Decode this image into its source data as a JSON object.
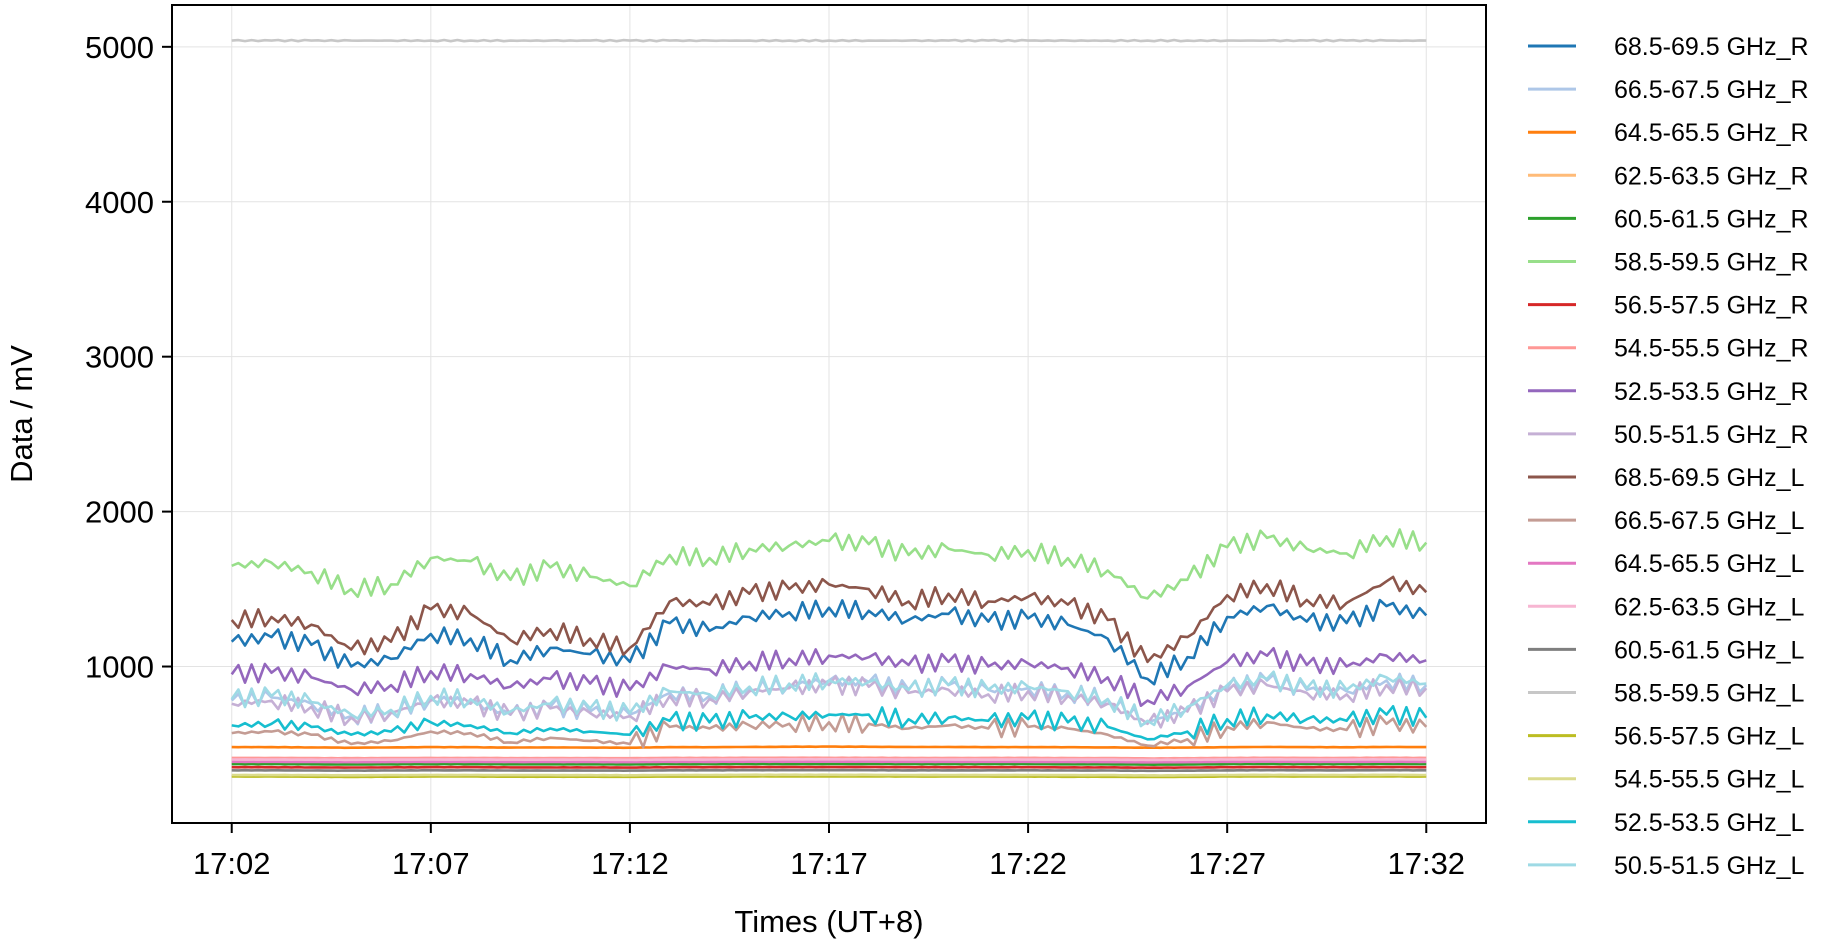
{
  "chart_data": {
    "type": "line",
    "xlabel": "Times (UT+8)",
    "ylabel": "Data / mV",
    "xlim": [
      "17:00:30",
      "17:33:30"
    ],
    "ylim": [
      -10,
      5270
    ],
    "x_ticks": [
      "17:02",
      "17:07",
      "17:12",
      "17:17",
      "17:22",
      "17:27",
      "17:32"
    ],
    "y_ticks": [
      1000,
      2000,
      3000,
      4000,
      5000
    ],
    "grid": true,
    "legend_placement": "outside-right",
    "x": [
      "17:02",
      "17:03",
      "17:04",
      "17:05",
      "17:06",
      "17:07",
      "17:08",
      "17:09",
      "17:10",
      "17:11",
      "17:12",
      "17:13",
      "17:14",
      "17:15",
      "17:16",
      "17:17",
      "17:18",
      "17:19",
      "17:20",
      "17:21",
      "17:22",
      "17:23",
      "17:24",
      "17:25",
      "17:26",
      "17:27",
      "17:28",
      "17:29",
      "17:30",
      "17:31",
      "17:32"
    ],
    "series": [
      {
        "name": "68.5-69.5 GHz_R",
        "color": "#1f77b4",
        "values": [
          1160,
          1190,
          1140,
          1000,
          1050,
          1210,
          1180,
          1040,
          1120,
          1080,
          1030,
          1280,
          1230,
          1320,
          1350,
          1380,
          1360,
          1300,
          1340,
          1290,
          1310,
          1270,
          1180,
          920,
          1060,
          1320,
          1390,
          1290,
          1280,
          1390,
          1330
        ]
      },
      {
        "name": "66.5-67.5 GHz_R",
        "color": "#aec7e8",
        "values": [
          780,
          800,
          760,
          680,
          710,
          790,
          770,
          690,
          740,
          710,
          690,
          830,
          810,
          860,
          880,
          910,
          900,
          850,
          880,
          850,
          860,
          830,
          790,
          640,
          720,
          860,
          910,
          850,
          840,
          910,
          880
        ]
      },
      {
        "name": "64.5-65.5 GHz_R",
        "color": "#ff7f0e",
        "values": [
          480,
          480,
          478,
          476,
          478,
          480,
          479,
          477,
          478,
          477,
          476,
          480,
          479,
          481,
          482,
          483,
          482,
          481,
          481,
          480,
          480,
          479,
          478,
          476,
          477,
          479,
          481,
          480,
          479,
          481,
          480
        ]
      },
      {
        "name": "62.5-63.5 GHz_R",
        "color": "#ffbb78",
        "values": [
          395,
          395,
          394,
          393,
          394,
          395,
          395,
          394,
          394,
          394,
          393,
          395,
          395,
          396,
          396,
          396,
          396,
          395,
          395,
          395,
          395,
          394,
          394,
          392,
          393,
          395,
          396,
          395,
          395,
          396,
          395
        ]
      },
      {
        "name": "60.5-61.5 GHz_R",
        "color": "#2ca02c",
        "values": [
          370,
          370,
          369,
          368,
          369,
          370,
          370,
          369,
          369,
          369,
          368,
          370,
          370,
          371,
          371,
          371,
          371,
          370,
          370,
          370,
          370,
          369,
          369,
          367,
          368,
          370,
          371,
          370,
          370,
          371,
          370
        ]
      },
      {
        "name": "58.5-59.5 GHz_R",
        "color": "#98df8a",
        "values": [
          1650,
          1670,
          1610,
          1500,
          1530,
          1700,
          1680,
          1560,
          1640,
          1580,
          1520,
          1720,
          1700,
          1760,
          1780,
          1810,
          1790,
          1720,
          1760,
          1720,
          1750,
          1700,
          1620,
          1440,
          1560,
          1770,
          1830,
          1760,
          1730,
          1840,
          1800
        ]
      },
      {
        "name": "56.5-57.5 GHz_R",
        "color": "#d62728",
        "values": [
          350,
          350,
          349,
          348,
          349,
          350,
          350,
          349,
          349,
          349,
          348,
          350,
          350,
          351,
          351,
          351,
          351,
          350,
          350,
          350,
          350,
          349,
          349,
          347,
          348,
          350,
          351,
          350,
          350,
          351,
          350
        ]
      },
      {
        "name": "54.5-55.5 GHz_R",
        "color": "#ff9896",
        "values": [
          410,
          410,
          409,
          408,
          409,
          410,
          410,
          409,
          409,
          409,
          408,
          410,
          410,
          411,
          411,
          411,
          411,
          410,
          410,
          410,
          410,
          409,
          409,
          407,
          408,
          410,
          411,
          410,
          410,
          411,
          410
        ]
      },
      {
        "name": "52.5-53.5 GHz_R",
        "color": "#9467bd",
        "values": [
          950,
          960,
          930,
          850,
          880,
          970,
          950,
          870,
          920,
          890,
          850,
          1000,
          980,
          1030,
          1050,
          1070,
          1060,
          1010,
          1030,
          1000,
          1020,
          990,
          930,
          780,
          870,
          1030,
          1070,
          1010,
          1000,
          1070,
          1040
        ]
      },
      {
        "name": "50.5-51.5 GHz_R",
        "color": "#c5b0d5",
        "values": [
          760,
          780,
          740,
          670,
          700,
          780,
          760,
          690,
          730,
          700,
          680,
          810,
          790,
          840,
          860,
          880,
          870,
          830,
          850,
          820,
          840,
          810,
          760,
          630,
          710,
          840,
          880,
          830,
          820,
          880,
          860
        ]
      },
      {
        "name": "68.5-69.5 GHz_L",
        "color": "#8c564b",
        "values": [
          1300,
          1320,
          1270,
          1110,
          1160,
          1370,
          1340,
          1170,
          1240,
          1180,
          1120,
          1420,
          1400,
          1470,
          1500,
          1530,
          1500,
          1420,
          1470,
          1420,
          1450,
          1400,
          1300,
          1030,
          1190,
          1460,
          1530,
          1430,
          1410,
          1550,
          1480
        ]
      },
      {
        "name": "66.5-67.5 GHz_L",
        "color": "#c49c94",
        "values": [
          570,
          580,
          560,
          500,
          520,
          580,
          570,
          510,
          540,
          520,
          500,
          610,
          600,
          620,
          630,
          640,
          630,
          600,
          620,
          600,
          610,
          600,
          560,
          490,
          530,
          610,
          640,
          600,
          590,
          630,
          610
        ]
      },
      {
        "name": "64.5-65.5 GHz_L",
        "color": "#e377c2",
        "values": [
          385,
          385,
          384,
          383,
          384,
          385,
          385,
          384,
          384,
          384,
          383,
          385,
          385,
          386,
          386,
          386,
          386,
          385,
          385,
          385,
          385,
          384,
          384,
          382,
          383,
          385,
          386,
          385,
          385,
          386,
          385
        ]
      },
      {
        "name": "62.5-63.5 GHz_L",
        "color": "#f7b6d2",
        "values": [
          400,
          400,
          399,
          398,
          399,
          400,
          400,
          399,
          399,
          399,
          398,
          400,
          400,
          401,
          401,
          401,
          401,
          400,
          400,
          400,
          400,
          399,
          399,
          397,
          398,
          400,
          401,
          400,
          400,
          401,
          400
        ]
      },
      {
        "name": "60.5-61.5 GHz_L",
        "color": "#7f7f7f",
        "values": [
          330,
          330,
          329,
          328,
          329,
          330,
          330,
          329,
          329,
          329,
          328,
          330,
          330,
          331,
          331,
          331,
          331,
          330,
          330,
          330,
          330,
          329,
          329,
          327,
          328,
          330,
          331,
          330,
          330,
          331,
          330
        ]
      },
      {
        "name": "58.5-59.5 GHz_L",
        "color": "#c7c7c7",
        "values": [
          5040,
          5040,
          5040,
          5040,
          5040,
          5040,
          5040,
          5040,
          5040,
          5040,
          5040,
          5040,
          5040,
          5040,
          5040,
          5040,
          5040,
          5040,
          5040,
          5040,
          5040,
          5040,
          5040,
          5040,
          5040,
          5040,
          5040,
          5040,
          5040,
          5040,
          5040
        ]
      },
      {
        "name": "56.5-57.5 GHz_L",
        "color": "#bcbd22",
        "values": [
          290,
          290,
          289,
          288,
          289,
          290,
          290,
          289,
          289,
          289,
          288,
          290,
          290,
          291,
          291,
          291,
          291,
          290,
          290,
          290,
          290,
          289,
          289,
          287,
          288,
          290,
          291,
          290,
          290,
          291,
          290
        ]
      },
      {
        "name": "54.5-55.5 GHz_L",
        "color": "#dbdb8d",
        "values": [
          300,
          300,
          299,
          298,
          299,
          300,
          300,
          299,
          299,
          299,
          298,
          300,
          300,
          301,
          301,
          301,
          301,
          300,
          300,
          300,
          300,
          299,
          299,
          297,
          298,
          300,
          301,
          300,
          300,
          301,
          300
        ]
      },
      {
        "name": "52.5-53.5 GHz_L",
        "color": "#17becf",
        "values": [
          620,
          630,
          610,
          560,
          580,
          640,
          620,
          570,
          600,
          580,
          560,
          650,
          640,
          670,
          680,
          690,
          690,
          660,
          670,
          650,
          660,
          640,
          610,
          530,
          580,
          660,
          690,
          660,
          650,
          690,
          670
        ]
      },
      {
        "name": "50.5-51.5 GHz_L",
        "color": "#9edae5",
        "values": [
          790,
          810,
          770,
          690,
          720,
          810,
          790,
          710,
          760,
          730,
          700,
          840,
          820,
          870,
          890,
          910,
          900,
          850,
          880,
          850,
          870,
          840,
          790,
          650,
          740,
          880,
          920,
          860,
          850,
          930,
          890
        ]
      }
    ]
  }
}
